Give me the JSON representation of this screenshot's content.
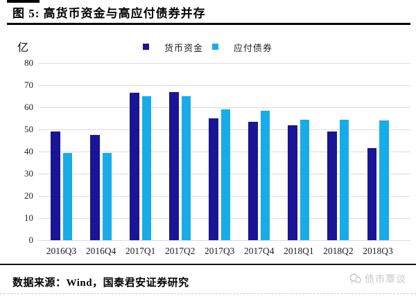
{
  "title": "图 5: 高货币资金与高应付债券并存",
  "unit_label": "亿",
  "legend": [
    {
      "name": "货币资金",
      "color": "#1A1496"
    },
    {
      "name": "应付债券",
      "color": "#17ACE8"
    }
  ],
  "source_note": "数据来源：Wind，国泰君安证券研究",
  "watermark_text": "债市覃谈",
  "colors": {
    "series_money": "#1A1496",
    "series_bonds": "#17ACE8",
    "gridline": "#dbdbdb",
    "watermark": "#c8c8c8"
  },
  "chart_data": {
    "type": "bar",
    "title": "高货币资金与高应付债券并存",
    "categories": [
      "2016Q3",
      "2016Q4",
      "2017Q1",
      "2017Q2",
      "2017Q3",
      "2017Q4",
      "2018Q1",
      "2018Q2",
      "2018Q3"
    ],
    "series": [
      {
        "name": "货币资金",
        "color": "#1A1496",
        "values": [
          49,
          47.5,
          66.5,
          67,
          55,
          53.5,
          52,
          49,
          41.5
        ]
      },
      {
        "name": "应付债券",
        "color": "#17ACE8",
        "values": [
          39.5,
          39.5,
          65,
          65,
          59,
          58.5,
          54.5,
          54.5,
          54
        ]
      }
    ],
    "xlabel": "",
    "ylabel": "亿",
    "ylim": [
      0,
      80
    ],
    "ytick_step": 10,
    "grid": true,
    "legend_position": "top"
  }
}
